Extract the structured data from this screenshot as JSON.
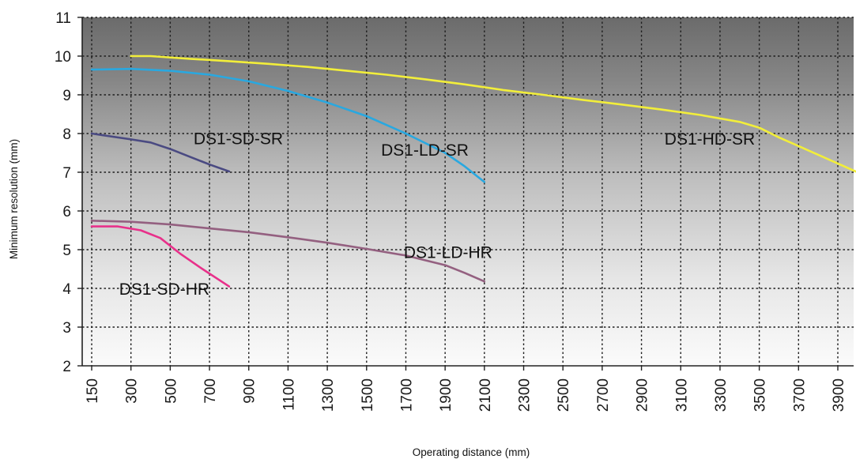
{
  "chart_data": {
    "type": "line",
    "xlabel": "Operating distance (mm)",
    "ylabel": "Minimum resolution (mm)",
    "xlim": [
      150,
      4000
    ],
    "ylim": [
      2,
      11
    ],
    "x_ticks": [
      "150",
      "300",
      "500",
      "700",
      "900",
      "1100",
      "1300",
      "1500",
      "1700",
      "1900",
      "2100",
      "2300",
      "2500",
      "2700",
      "2900",
      "3100",
      "3300",
      "3500",
      "3700",
      "3900"
    ],
    "y_ticks": [
      "2",
      "3",
      "4",
      "5",
      "6",
      "7",
      "8",
      "9",
      "10",
      "11"
    ],
    "grid": true,
    "series": [
      {
        "name": "DS1-HD-SR",
        "color": "#f2ee3a",
        "x": [
          300,
          400,
          600,
          800,
          1000,
          1200,
          1400,
          1600,
          1800,
          2000,
          2200,
          2400,
          2600,
          2800,
          3000,
          3200,
          3400,
          3500,
          3600,
          3800,
          4000
        ],
        "y": [
          10.0,
          10.0,
          9.93,
          9.87,
          9.8,
          9.72,
          9.62,
          9.52,
          9.4,
          9.27,
          9.12,
          9.0,
          8.87,
          8.75,
          8.62,
          8.48,
          8.3,
          8.15,
          7.9,
          7.45,
          7.0
        ]
      },
      {
        "name": "DS1-LD-SR",
        "color": "#29a8e0",
        "x": [
          150,
          300,
          500,
          700,
          900,
          1100,
          1300,
          1500,
          1700,
          1900,
          2000,
          2100
        ],
        "y": [
          9.65,
          9.67,
          9.62,
          9.52,
          9.35,
          9.1,
          8.8,
          8.45,
          8.0,
          7.5,
          7.15,
          6.75
        ]
      },
      {
        "name": "DS1-SD-SR",
        "color": "#4a4a82",
        "x": [
          150,
          300,
          400,
          500,
          600,
          700,
          800
        ],
        "y": [
          8.0,
          7.85,
          7.77,
          7.6,
          7.4,
          7.2,
          7.02
        ]
      },
      {
        "name": "DS1-LD-HR",
        "color": "#946080",
        "x": [
          150,
          300,
          500,
          700,
          900,
          1100,
          1300,
          1500,
          1700,
          1900,
          2000,
          2100
        ],
        "y": [
          5.75,
          5.72,
          5.65,
          5.55,
          5.45,
          5.32,
          5.18,
          5.02,
          4.85,
          4.6,
          4.4,
          4.18
        ]
      },
      {
        "name": "DS1-SD-HR",
        "color": "#e8308a",
        "x": [
          150,
          250,
          350,
          450,
          550,
          650,
          800
        ],
        "y": [
          5.6,
          5.6,
          5.5,
          5.3,
          4.9,
          4.55,
          4.05
        ]
      }
    ]
  }
}
